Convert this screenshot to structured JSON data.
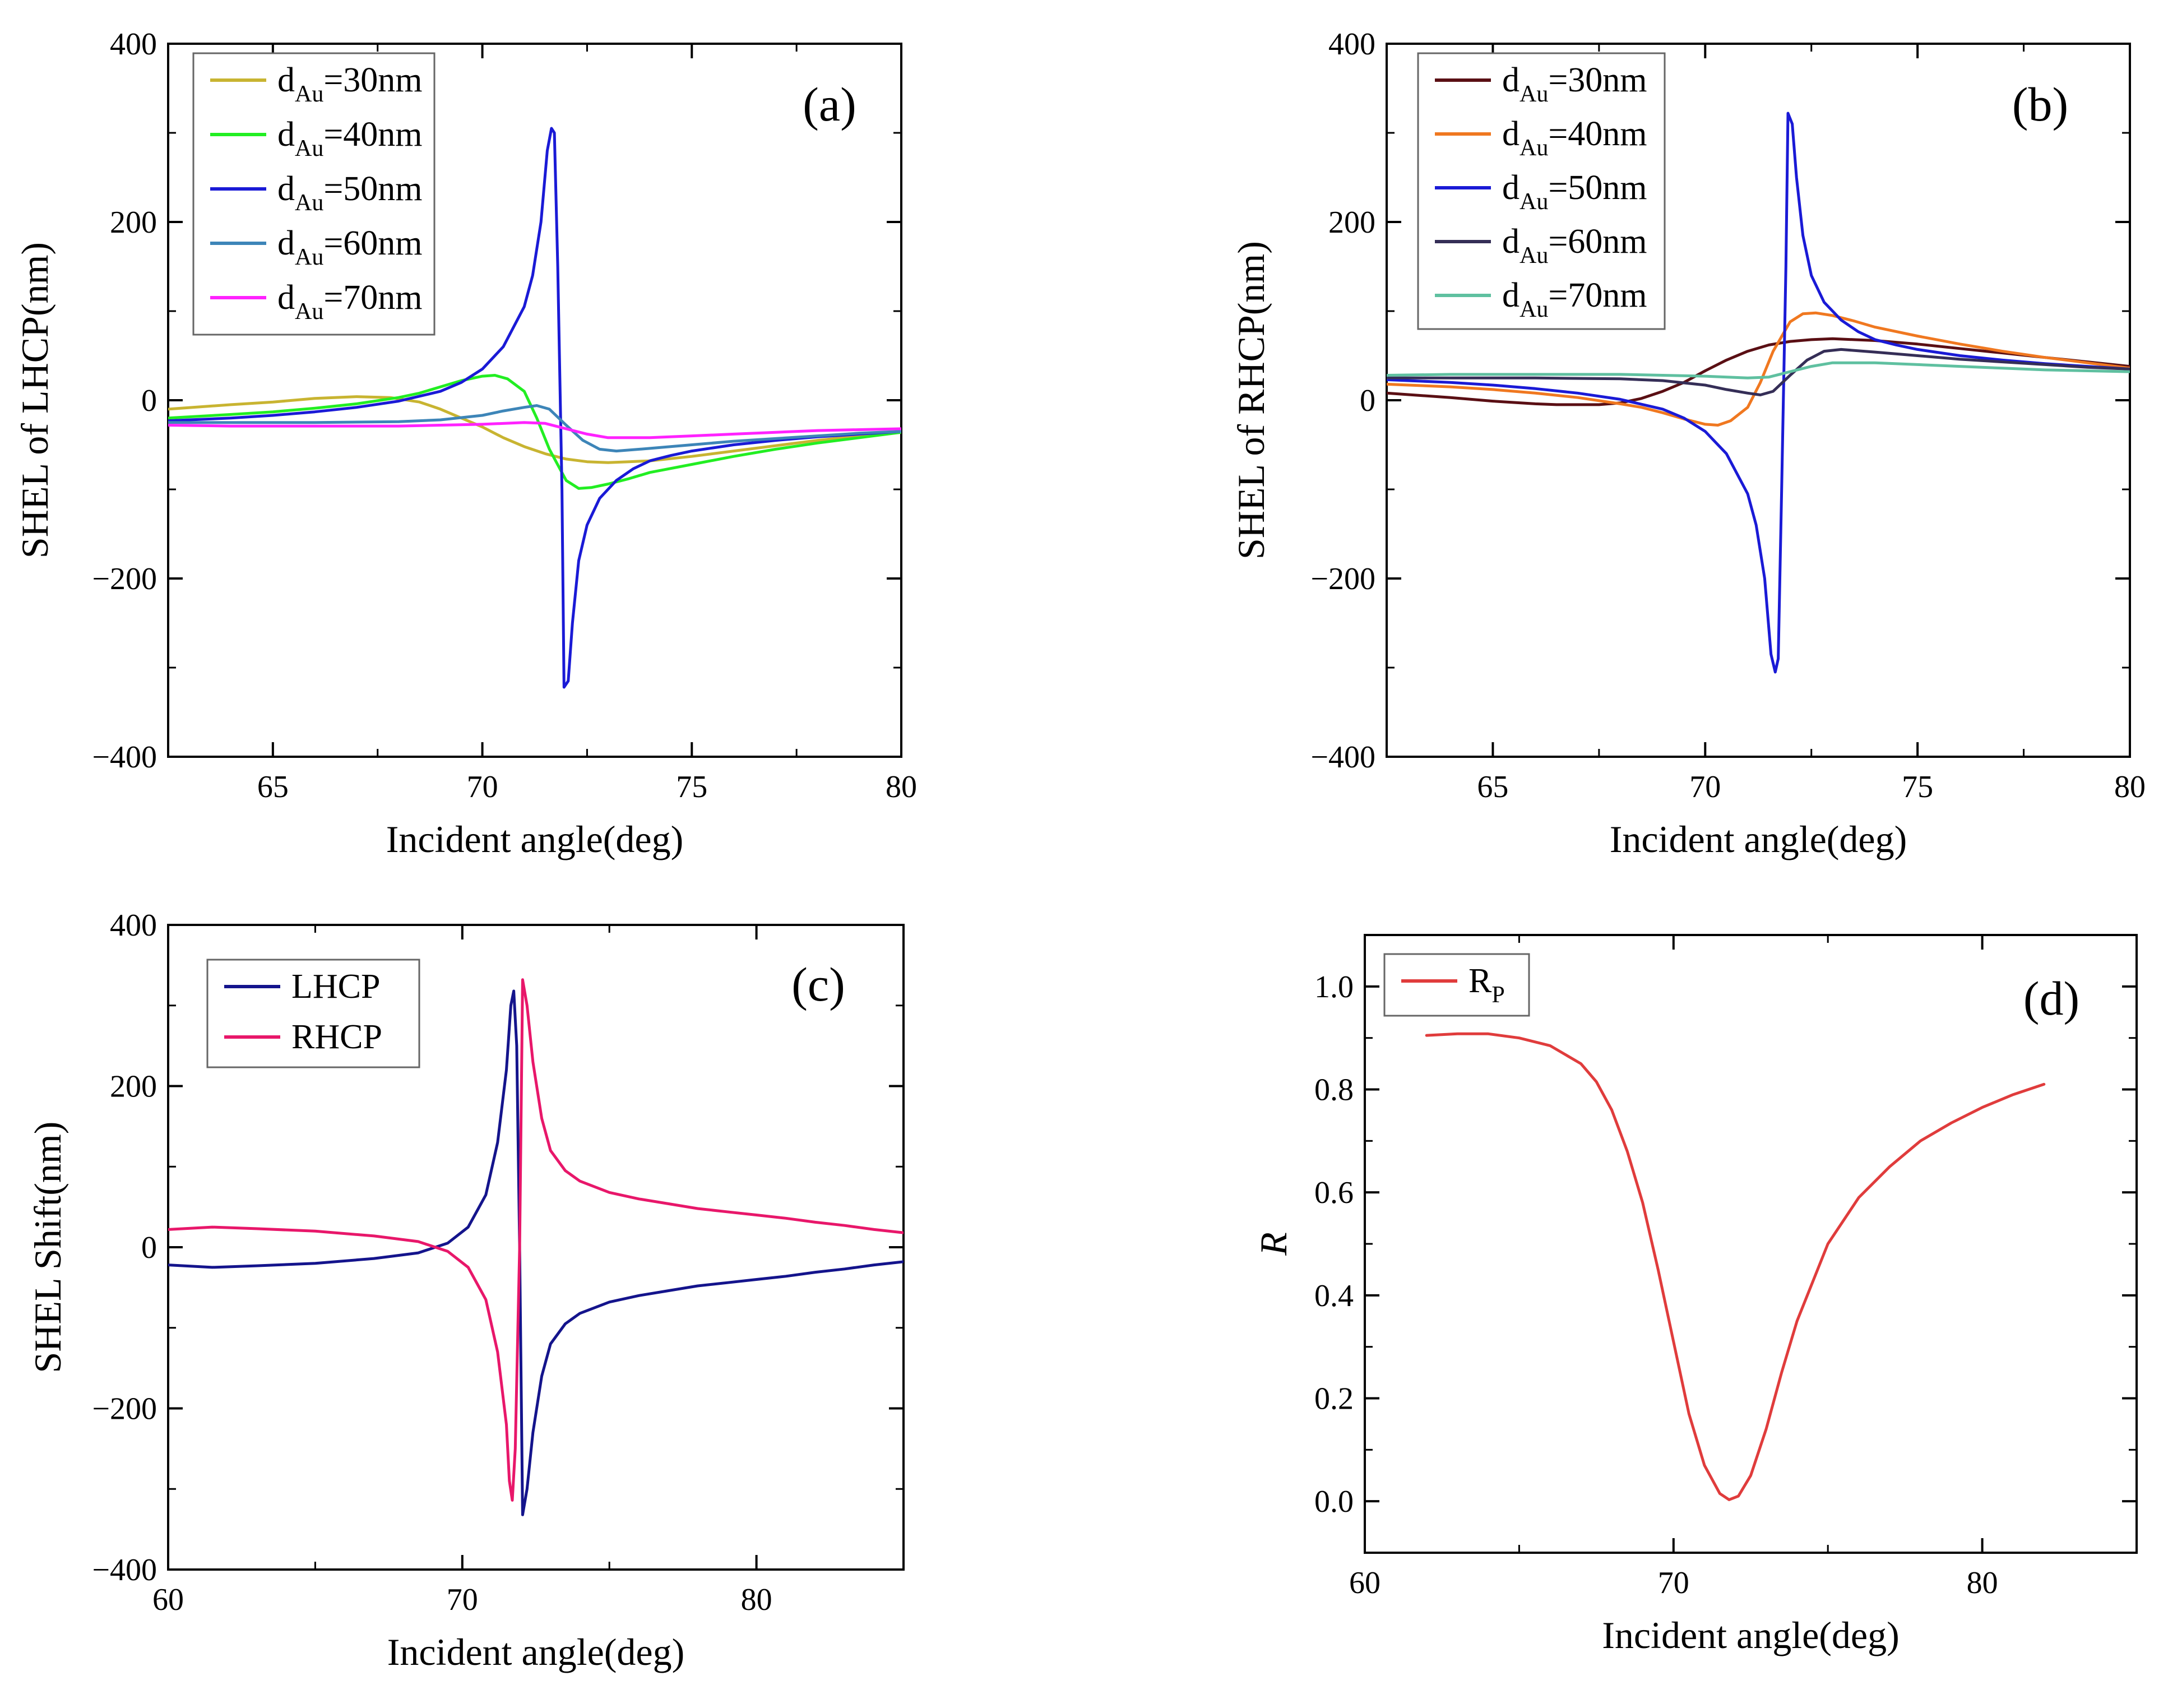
{
  "chart_data": [
    {
      "id": "a",
      "type": "line",
      "panel_label": "(a)",
      "xlabel": "Incident angle(deg)",
      "ylabel": "SHEL of LHCP(nm)",
      "xlim": [
        62.5,
        80
      ],
      "ylim": [
        -400,
        400
      ],
      "xticks": [
        65,
        70,
        75,
        80
      ],
      "yticks": [
        -400,
        -200,
        0,
        200,
        400
      ],
      "legend_position": "top-left",
      "series": [
        {
          "name": "dAu=30nm",
          "label_main": "d",
          "label_sub": "Au",
          "label_rest": "=30nm",
          "color": "#c8b431",
          "x": [
            62.5,
            64,
            65,
            66,
            67,
            67.8,
            68.5,
            69,
            69.5,
            70,
            70.5,
            71,
            71.5,
            72,
            72.5,
            73,
            73.5,
            74,
            75,
            76,
            77,
            78,
            79,
            80
          ],
          "y": [
            -10,
            -5,
            -2,
            2,
            4,
            3,
            -2,
            -10,
            -20,
            -30,
            -42,
            -52,
            -60,
            -66,
            -69,
            -70,
            -69,
            -68,
            -63,
            -57,
            -51,
            -45,
            -40,
            -36
          ]
        },
        {
          "name": "dAu=40nm",
          "label_main": "d",
          "label_sub": "Au",
          "label_rest": "=40nm",
          "color": "#22ee22",
          "x": [
            62.5,
            64,
            65,
            66,
            67,
            68,
            68.5,
            69,
            69.5,
            70,
            70.3,
            70.6,
            71,
            71.3,
            71.6,
            72,
            72.3,
            72.6,
            73,
            73.5,
            74,
            75,
            76,
            77,
            78,
            79,
            80
          ],
          "y": [
            -20,
            -16,
            -13,
            -9,
            -4,
            3,
            8,
            15,
            22,
            27,
            28,
            24,
            10,
            -20,
            -55,
            -90,
            -99,
            -98,
            -94,
            -88,
            -81,
            -72,
            -63,
            -55,
            -48,
            -42,
            -36
          ]
        },
        {
          "name": "dAu=50nm",
          "label_main": "d",
          "label_sub": "Au",
          "label_rest": "=50nm",
          "color": "#1a1ad6",
          "x": [
            62.5,
            64,
            65,
            66,
            67,
            68,
            69,
            69.5,
            70,
            70.5,
            71,
            71.2,
            71.4,
            71.55,
            71.65,
            71.72,
            71.8,
            71.9,
            71.95,
            72.05,
            72.15,
            72.3,
            72.5,
            72.8,
            73.2,
            73.6,
            74,
            74.5,
            75,
            76,
            77,
            78,
            79,
            80
          ],
          "y": [
            -23,
            -20,
            -17,
            -13,
            -8,
            -1,
            10,
            20,
            35,
            60,
            105,
            140,
            200,
            280,
            305,
            300,
            150,
            -100,
            -322,
            -315,
            -250,
            -180,
            -140,
            -110,
            -90,
            -77,
            -68,
            -62,
            -57,
            -50,
            -45,
            -41,
            -38,
            -35
          ]
        },
        {
          "name": "dAu=60nm",
          "label_main": "d",
          "label_sub": "Au",
          "label_rest": "=60nm",
          "color": "#3d85b8",
          "x": [
            62.5,
            64,
            66,
            68,
            69,
            70,
            70.5,
            71,
            71.3,
            71.6,
            72,
            72.4,
            72.8,
            73.2,
            74,
            75,
            76,
            77,
            78,
            79,
            80
          ],
          "y": [
            -25,
            -25,
            -25,
            -24,
            -22,
            -17,
            -12,
            -8,
            -6,
            -10,
            -28,
            -45,
            -55,
            -57,
            -54,
            -50,
            -46,
            -43,
            -40,
            -37,
            -35
          ]
        },
        {
          "name": "dAu=70nm",
          "label_main": "d",
          "label_sub": "Au",
          "label_rest": "=70nm",
          "color": "#ff22ff",
          "x": [
            62.5,
            64,
            66,
            68,
            70,
            71,
            71.5,
            72,
            72.5,
            73,
            74,
            75,
            76,
            77,
            78,
            79,
            80
          ],
          "y": [
            -28,
            -29,
            -29,
            -29,
            -27,
            -25,
            -26,
            -32,
            -38,
            -42,
            -42,
            -40,
            -38,
            -36,
            -34,
            -33,
            -32
          ]
        }
      ]
    },
    {
      "id": "b",
      "type": "line",
      "panel_label": "(b)",
      "xlabel": "Incident angle(deg)",
      "ylabel": "SHEL of RHCP(nm)",
      "xlim": [
        62.5,
        80
      ],
      "ylim": [
        -400,
        400
      ],
      "xticks": [
        65,
        70,
        75,
        80
      ],
      "yticks": [
        -400,
        -200,
        0,
        200,
        400
      ],
      "legend_position": "top-left",
      "series": [
        {
          "name": "dAu=30nm",
          "label_main": "d",
          "label_sub": "Au",
          "label_rest": "=30nm",
          "color": "#5a0f14",
          "x": [
            62.5,
            64,
            65,
            66,
            66.5,
            67,
            67.5,
            68,
            68.5,
            69,
            69.5,
            70,
            70.5,
            71,
            71.5,
            72,
            72.5,
            73,
            73.5,
            74,
            75,
            76,
            77,
            78,
            79,
            80
          ],
          "y": [
            8,
            3,
            -1,
            -4,
            -5,
            -5,
            -5,
            -3,
            2,
            10,
            20,
            33,
            45,
            55,
            62,
            66,
            68,
            69,
            68,
            67,
            63,
            58,
            53,
            48,
            43,
            38
          ]
        },
        {
          "name": "dAu=40nm",
          "label_main": "d",
          "label_sub": "Au",
          "label_rest": "=40nm",
          "color": "#f07820",
          "x": [
            62.5,
            64,
            65,
            66,
            67,
            68,
            68.5,
            69,
            69.5,
            70,
            70.3,
            70.6,
            71,
            71.3,
            71.6,
            72,
            72.3,
            72.6,
            73,
            73.5,
            74,
            75,
            76,
            77,
            78,
            79,
            80
          ],
          "y": [
            18,
            15,
            12,
            8,
            3,
            -4,
            -8,
            -14,
            -21,
            -27,
            -28,
            -23,
            -8,
            20,
            55,
            88,
            97,
            98,
            95,
            89,
            82,
            72,
            63,
            55,
            48,
            42,
            36
          ]
        },
        {
          "name": "dAu=50nm",
          "label_main": "d",
          "label_sub": "Au",
          "label_rest": "=50nm",
          "color": "#1a1ad6",
          "x": [
            62.5,
            64,
            65,
            66,
            67,
            68,
            69,
            69.5,
            70,
            70.5,
            71,
            71.2,
            71.4,
            71.55,
            71.65,
            71.72,
            71.8,
            71.9,
            71.95,
            72.05,
            72.15,
            72.3,
            72.5,
            72.8,
            73.2,
            73.6,
            74,
            74.5,
            75,
            76,
            77,
            78,
            79,
            80
          ],
          "y": [
            23,
            20,
            17,
            13,
            8,
            1,
            -10,
            -20,
            -35,
            -60,
            -105,
            -140,
            -200,
            -285,
            -305,
            -290,
            -100,
            150,
            322,
            310,
            250,
            185,
            140,
            110,
            90,
            77,
            68,
            62,
            57,
            50,
            45,
            41,
            38,
            35
          ]
        },
        {
          "name": "dAu=60nm",
          "label_main": "d",
          "label_sub": "Au",
          "label_rest": "=60nm",
          "color": "#352e57",
          "x": [
            62.5,
            64,
            66,
            68,
            69,
            70,
            70.5,
            71,
            71.3,
            71.6,
            72,
            72.4,
            72.8,
            73.2,
            74,
            75,
            76,
            77,
            78,
            79,
            80
          ],
          "y": [
            25,
            25,
            25,
            24,
            22,
            17,
            12,
            8,
            6,
            10,
            28,
            45,
            55,
            57,
            54,
            50,
            46,
            43,
            40,
            37,
            35
          ]
        },
        {
          "name": "dAu=70nm",
          "label_main": "d",
          "label_sub": "Au",
          "label_rest": "=70nm",
          "color": "#5fc0a0",
          "x": [
            62.5,
            64,
            66,
            68,
            70,
            71,
            71.5,
            72,
            72.5,
            73,
            74,
            75,
            76,
            77,
            78,
            79,
            80
          ],
          "y": [
            28,
            29,
            29,
            29,
            27,
            25,
            26,
            32,
            38,
            42,
            42,
            40,
            38,
            36,
            34,
            33,
            32
          ]
        }
      ]
    },
    {
      "id": "c",
      "type": "line",
      "panel_label": "(c)",
      "xlabel": "Incident angle(deg)",
      "ylabel": "SHEL Shift(nm)",
      "xlim": [
        60,
        85
      ],
      "ylim": [
        -400,
        400
      ],
      "xticks": [
        60,
        70,
        80
      ],
      "yticks": [
        -400,
        -200,
        0,
        200,
        400
      ],
      "legend_position": "top-left",
      "series": [
        {
          "name": "LHCP",
          "label_main": "LHCP",
          "label_sub": "",
          "label_rest": "",
          "color": "#14148c",
          "x": [
            60,
            61.5,
            63,
            65,
            67,
            68.5,
            69.5,
            70.2,
            70.8,
            71.2,
            71.5,
            71.65,
            71.75,
            71.85,
            71.95,
            72.05,
            72.2,
            72.4,
            72.7,
            73,
            73.5,
            74,
            75,
            76,
            77,
            78,
            79,
            80,
            81,
            82,
            83,
            84,
            85
          ],
          "y": [
            -22,
            -25,
            -23,
            -20,
            -14,
            -7,
            5,
            25,
            65,
            130,
            220,
            300,
            318,
            250,
            0,
            -332,
            -300,
            -230,
            -160,
            -120,
            -95,
            -82,
            -68,
            -60,
            -54,
            -48,
            -44,
            -40,
            -36,
            -31,
            -27,
            -22,
            -18
          ]
        },
        {
          "name": "RHCP",
          "label_main": "RHCP",
          "label_sub": "",
          "label_rest": "",
          "color": "#e8176a",
          "x": [
            60,
            61.5,
            63,
            65,
            67,
            68.5,
            69.5,
            70.2,
            70.8,
            71.2,
            71.5,
            71.6,
            71.7,
            71.8,
            71.95,
            72.05,
            72.2,
            72.4,
            72.7,
            73,
            73.5,
            74,
            75,
            76,
            77,
            78,
            79,
            80,
            81,
            82,
            83,
            84,
            85
          ],
          "y": [
            22,
            25,
            23,
            20,
            14,
            7,
            -5,
            -25,
            -65,
            -130,
            -220,
            -290,
            -314,
            -250,
            0,
            332,
            300,
            230,
            160,
            120,
            95,
            82,
            68,
            60,
            54,
            48,
            44,
            40,
            36,
            31,
            27,
            22,
            18
          ]
        }
      ]
    },
    {
      "id": "d",
      "type": "line",
      "panel_label": "(d)",
      "xlabel": "Incident angle(deg)",
      "ylabel": "R",
      "xlim": [
        60,
        85
      ],
      "ylim": [
        -0.1,
        1.1
      ],
      "xticks": [
        60,
        70,
        80
      ],
      "yticks": [
        0.0,
        0.2,
        0.4,
        0.6,
        0.8,
        1.0
      ],
      "ytick_labels": [
        "0.0",
        "0.2",
        "0.4",
        "0.6",
        "0.8",
        "1.0"
      ],
      "legend_position": "top-left",
      "series": [
        {
          "name": "RP",
          "label_main": "R",
          "label_sub": "P",
          "label_rest": "",
          "color": "#e03c3c",
          "x": [
            62,
            63,
            64,
            65,
            66,
            67,
            67.5,
            68,
            68.5,
            69,
            69.5,
            70,
            70.5,
            71,
            71.5,
            71.8,
            72.1,
            72.5,
            73,
            73.5,
            74,
            75,
            76,
            77,
            78,
            79,
            80,
            81,
            82
          ],
          "y": [
            0.905,
            0.908,
            0.908,
            0.9,
            0.885,
            0.85,
            0.815,
            0.76,
            0.68,
            0.58,
            0.45,
            0.31,
            0.17,
            0.07,
            0.015,
            0.003,
            0.01,
            0.05,
            0.14,
            0.25,
            0.35,
            0.5,
            0.59,
            0.65,
            0.7,
            0.735,
            0.765,
            0.79,
            0.81
          ]
        }
      ]
    }
  ]
}
